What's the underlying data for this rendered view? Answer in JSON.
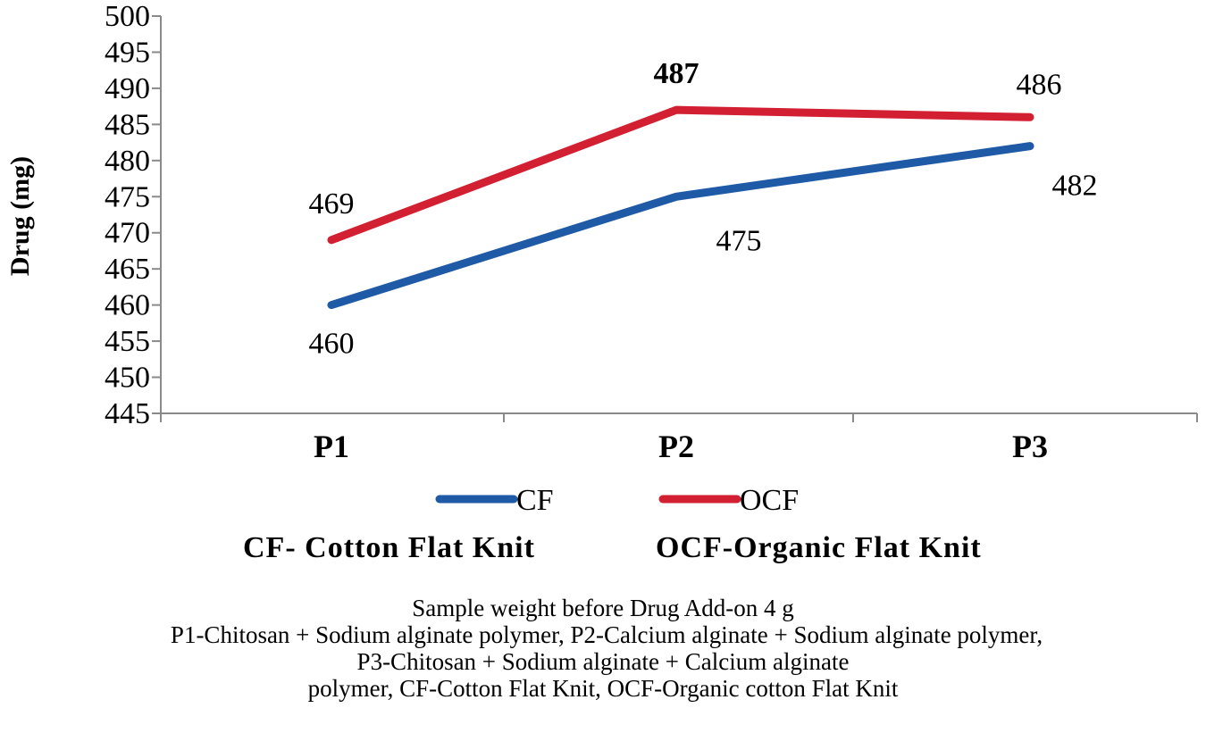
{
  "chart_data": {
    "type": "line",
    "categories": [
      "P1",
      "P2",
      "P3"
    ],
    "series": [
      {
        "name": "CF",
        "values": [
          460,
          475,
          482
        ],
        "color": "#1f5aa6",
        "label_position": [
          "below",
          "below",
          "below"
        ],
        "label_bold": false
      },
      {
        "name": "OCF",
        "values": [
          469,
          487,
          486
        ],
        "color": "#d22032",
        "label_position": [
          "above",
          "above",
          "above"
        ],
        "label_bold_index": 1
      }
    ],
    "ylabel": "Drug (mg)",
    "xlabel": "",
    "ylim": [
      445,
      500
    ],
    "ystep": 5,
    "grid": false,
    "legend": "bottom"
  },
  "key": {
    "cf": "CF- Cotton Flat Knit",
    "ocf": "OCF-Organic Flat Knit"
  },
  "caption": {
    "line1": "Sample weight before Drug Add-on 4 g",
    "line2": "P1-Chitosan + Sodium alginate polymer, P2-Calcium alginate + Sodium alginate polymer,",
    "line3": "P3-Chitosan + Sodium alginate + Calcium alginate",
    "line4": "polymer, CF-Cotton Flat Knit, OCF-Organic cotton Flat Knit"
  }
}
